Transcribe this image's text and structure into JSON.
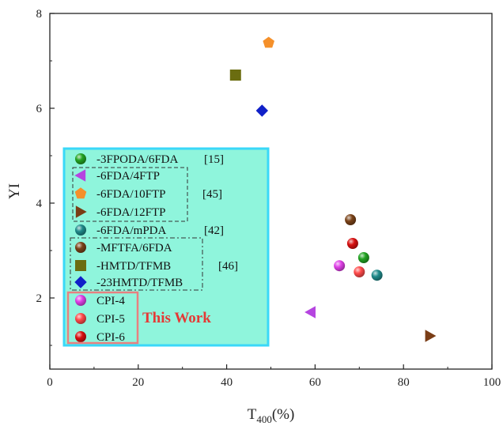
{
  "chart_data": {
    "type": "scatter",
    "xlabel_main": "T",
    "xlabel_sub": "400",
    "xlabel_unit": "(%)",
    "ylabel": "YI",
    "xlim": [
      0,
      100
    ],
    "ylim": [
      0.5,
      8
    ],
    "x_ticks": [
      0,
      20,
      40,
      60,
      80,
      100
    ],
    "y_ticks": [
      2,
      4,
      6,
      8
    ],
    "series": [
      {
        "name": "-3FPODA/6FDA",
        "marker": "sphere",
        "color": "#22a322",
        "x": [
          71
        ],
        "y": [
          2.85
        ]
      },
      {
        "name": "-6FDA/4FTP",
        "marker": "triangle-left",
        "color": "#b545e0",
        "x": [
          59
        ],
        "y": [
          1.7
        ]
      },
      {
        "name": "-6FDA/10FTP",
        "marker": "pentagon",
        "color": "#f5902a",
        "x": [
          49.5
        ],
        "y": [
          7.38
        ]
      },
      {
        "name": "-6FDA/12FTP",
        "marker": "triangle-right",
        "color": "#7a3d16",
        "x": [
          86
        ],
        "y": [
          1.2
        ]
      },
      {
        "name": "-6FDA/mPDA",
        "marker": "sphere",
        "color": "#1f8a8a",
        "x": [
          74
        ],
        "y": [
          2.48
        ]
      },
      {
        "name": "-MFTFA/6FDA",
        "marker": "sphere",
        "color": "#7a4218",
        "x": [
          68
        ],
        "y": [
          3.65
        ]
      },
      {
        "name": "-HMTD/TFMB",
        "marker": "square",
        "color": "#6b6d10",
        "x": [
          42
        ],
        "y": [
          6.7
        ]
      },
      {
        "name": "-23HMTD/TFMB",
        "marker": "diamond",
        "color": "#1020c8",
        "x": [
          48
        ],
        "y": [
          5.95
        ]
      },
      {
        "name": "CPI-4",
        "marker": "sphere",
        "color": "#e040e8",
        "x": [
          65.5
        ],
        "y": [
          2.68
        ]
      },
      {
        "name": "CPI-5",
        "marker": "sphere",
        "color": "#ff4a4a",
        "x": [
          70
        ],
        "y": [
          2.55
        ]
      },
      {
        "name": "CPI-6",
        "marker": "sphere",
        "color": "#d81010",
        "x": [
          68.5
        ],
        "y": [
          3.15
        ]
      }
    ],
    "refs": [
      {
        "label": "[15]",
        "row": 0
      },
      {
        "label": "[45]",
        "row": 2
      },
      {
        "label": "[42]",
        "row": 4
      },
      {
        "label": "[46]",
        "row": 6
      }
    ],
    "this_work_label": "This Work",
    "legend_placement": "lower-left",
    "grid": false
  }
}
